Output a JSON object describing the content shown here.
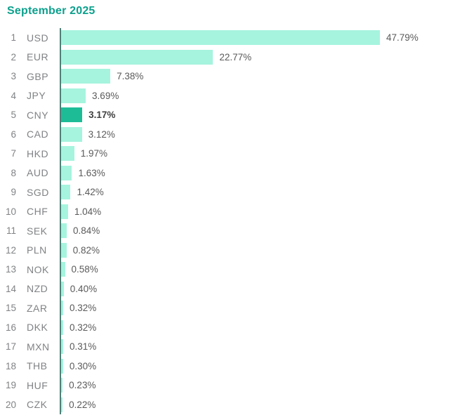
{
  "title": "September 2025",
  "colors": {
    "title": "#0DA08D",
    "bar": "#A6F4DE",
    "bar_highlight": "#1DBC97",
    "axis": "#4E8078",
    "rank_label": "#808285",
    "code_label": "#808285",
    "value_label": "#5A5A5A",
    "value_label_highlight": "#404040"
  },
  "chart_data": {
    "type": "bar",
    "orientation": "horizontal",
    "title": "September 2025",
    "xlabel": "",
    "ylabel": "",
    "unit": "%",
    "xlim": [
      0,
      50
    ],
    "grid": false,
    "legend": false,
    "categories": [
      "USD",
      "EUR",
      "GBP",
      "JPY",
      "CNY",
      "CAD",
      "HKD",
      "AUD",
      "SGD",
      "CHF",
      "SEK",
      "PLN",
      "NOK",
      "NZD",
      "ZAR",
      "DKK",
      "MXN",
      "THB",
      "HUF",
      "CZK"
    ],
    "values": [
      47.79,
      22.77,
      7.38,
      3.69,
      3.17,
      3.12,
      1.97,
      1.63,
      1.42,
      1.04,
      0.84,
      0.82,
      0.58,
      0.4,
      0.32,
      0.32,
      0.31,
      0.3,
      0.23,
      0.22
    ],
    "rows": [
      {
        "rank": "1",
        "code": "USD",
        "value": 47.79,
        "label": "47.79%",
        "highlight": false
      },
      {
        "rank": "2",
        "code": "EUR",
        "value": 22.77,
        "label": "22.77%",
        "highlight": false
      },
      {
        "rank": "3",
        "code": "GBP",
        "value": 7.38,
        "label": "7.38%",
        "highlight": false
      },
      {
        "rank": "4",
        "code": "JPY",
        "value": 3.69,
        "label": "3.69%",
        "highlight": false
      },
      {
        "rank": "5",
        "code": "CNY",
        "value": 3.17,
        "label": "3.17%",
        "highlight": true
      },
      {
        "rank": "6",
        "code": "CAD",
        "value": 3.12,
        "label": "3.12%",
        "highlight": false
      },
      {
        "rank": "7",
        "code": "HKD",
        "value": 1.97,
        "label": "1.97%",
        "highlight": false
      },
      {
        "rank": "8",
        "code": "AUD",
        "value": 1.63,
        "label": "1.63%",
        "highlight": false
      },
      {
        "rank": "9",
        "code": "SGD",
        "value": 1.42,
        "label": "1.42%",
        "highlight": false
      },
      {
        "rank": "10",
        "code": "CHF",
        "value": 1.04,
        "label": "1.04%",
        "highlight": false
      },
      {
        "rank": "11",
        "code": "SEK",
        "value": 0.84,
        "label": "0.84%",
        "highlight": false
      },
      {
        "rank": "12",
        "code": "PLN",
        "value": 0.82,
        "label": "0.82%",
        "highlight": false
      },
      {
        "rank": "13",
        "code": "NOK",
        "value": 0.58,
        "label": "0.58%",
        "highlight": false
      },
      {
        "rank": "14",
        "code": "NZD",
        "value": 0.4,
        "label": "0.40%",
        "highlight": false
      },
      {
        "rank": "15",
        "code": "ZAR",
        "value": 0.32,
        "label": "0.32%",
        "highlight": false
      },
      {
        "rank": "16",
        "code": "DKK",
        "value": 0.32,
        "label": "0.32%",
        "highlight": false
      },
      {
        "rank": "17",
        "code": "MXN",
        "value": 0.31,
        "label": "0.31%",
        "highlight": false
      },
      {
        "rank": "18",
        "code": "THB",
        "value": 0.3,
        "label": "0.30%",
        "highlight": false
      },
      {
        "rank": "19",
        "code": "HUF",
        "value": 0.23,
        "label": "0.23%",
        "highlight": false
      },
      {
        "rank": "20",
        "code": "CZK",
        "value": 0.22,
        "label": "0.22%",
        "highlight": false
      }
    ]
  }
}
